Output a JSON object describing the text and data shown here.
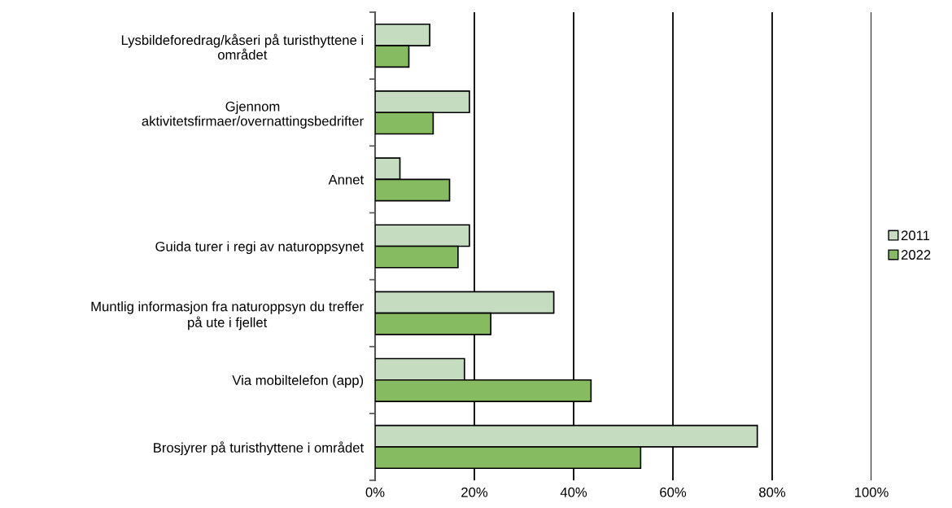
{
  "chart_data": {
    "type": "bar",
    "orientation": "horizontal",
    "categories": [
      "Lysbildeforedrag/kåseri på turisthyttene i\nområdet",
      "Gjennom\naktivitetsfirmaer/overnattingsbedrifter",
      "Annet",
      "Guida turer i regi av naturoppsynet",
      "Muntlig informasjon fra naturoppsyn du treffer\npå ute i fjellet",
      "Via mobiltelefon (app)",
      "Brosjyrer på turisthyttene i området"
    ],
    "series": [
      {
        "name": "2011",
        "color": "#c6dcc0",
        "values": [
          11,
          19,
          5,
          19,
          36,
          18,
          77
        ]
      },
      {
        "name": "2022",
        "color": "#86bb62",
        "values": [
          6.8,
          11.7,
          15,
          16.7,
          23.3,
          43.5,
          53.5
        ]
      }
    ],
    "xlim": [
      0,
      100
    ],
    "xticks": [
      {
        "value": 0,
        "label": "0%"
      },
      {
        "value": 20,
        "label": "20%"
      },
      {
        "value": 40,
        "label": "40%"
      },
      {
        "value": 60,
        "label": "60%"
      },
      {
        "value": 80,
        "label": "80%"
      },
      {
        "value": 100,
        "label": "100%"
      }
    ],
    "grid": "x",
    "legend": "right"
  }
}
